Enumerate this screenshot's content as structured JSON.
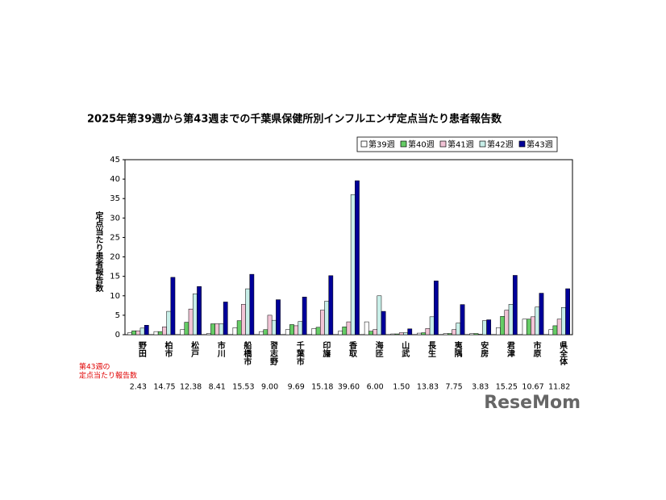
{
  "chart_data": {
    "type": "bar",
    "title": "2025年第39週から第43週までの千葉県保健所別インフルエンザ定点当たり患者報告数",
    "y_label": "定点当たり患者報告数",
    "categories": [
      "野田",
      "柏市",
      "松戸",
      "市川",
      "船橋市",
      "習志野",
      "千葉市",
      "印旛",
      "香取",
      "海匝",
      "山武",
      "長生",
      "夷隅",
      "安房",
      "君津",
      "市原",
      "県全体"
    ],
    "series": [
      {
        "name": "第39週",
        "color": "#ffffff",
        "values": [
          0.5,
          0.8,
          1.3,
          0.3,
          1.8,
          0.8,
          1.3,
          1.6,
          0.9,
          3.3,
          0.2,
          0.4,
          0.3,
          0.3,
          1.8,
          4.0,
          1.3
        ]
      },
      {
        "name": "第40週",
        "color": "#66cc66",
        "values": [
          1.0,
          0.8,
          3.2,
          2.8,
          3.6,
          1.3,
          2.6,
          1.9,
          2.0,
          0.9,
          0.2,
          0.5,
          0.3,
          0.3,
          4.7,
          4.0,
          2.3
        ]
      },
      {
        "name": "第41週",
        "color": "#f2c4d6",
        "values": [
          1.0,
          2.0,
          6.6,
          2.8,
          7.8,
          5.0,
          2.3,
          6.3,
          3.3,
          1.3,
          0.5,
          1.6,
          1.3,
          0.1,
          6.3,
          4.6,
          4.0
        ]
      },
      {
        "name": "第42週",
        "color": "#c8efe9",
        "values": [
          1.7,
          6.0,
          10.5,
          2.8,
          11.8,
          3.7,
          3.4,
          8.6,
          36.0,
          10.0,
          0.5,
          4.6,
          3.0,
          3.6,
          7.8,
          7.1,
          7.0
        ]
      },
      {
        "name": "第43週",
        "color": "#000099",
        "values": [
          2.43,
          14.75,
          12.38,
          8.41,
          15.53,
          9.0,
          9.69,
          15.18,
          39.6,
          6.0,
          1.5,
          13.83,
          7.75,
          3.83,
          15.25,
          10.67,
          11.82
        ],
        "value_labels": [
          "2.43",
          "14.75",
          "12.38",
          "8.41",
          "15.53",
          "9.00",
          "9.69",
          "15.18",
          "39.60",
          "6.00",
          "1.50",
          "13.83",
          "7.75",
          "3.83",
          "15.25",
          "10.67",
          "11.82"
        ]
      }
    ],
    "table_label": [
      "第43週の",
      "定点当たり報告数"
    ],
    "ylim": [
      0,
      45
    ],
    "yticks": [
      0,
      5,
      10,
      15,
      20,
      25,
      30,
      35,
      40,
      45
    ],
    "grid": false,
    "watermark": "ReseMom"
  }
}
